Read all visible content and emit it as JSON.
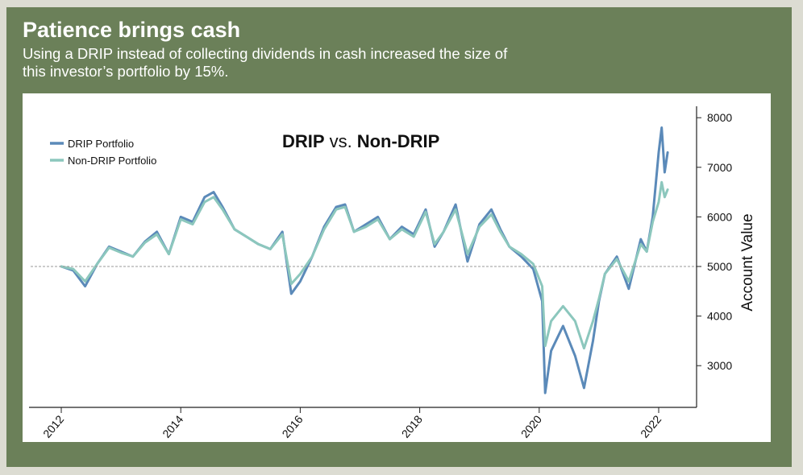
{
  "header": {
    "title": "Patience brings cash",
    "subtitle": "Using a DRIP instead of collecting dividends in cash increased the size of this investor’s portfolio by 15%."
  },
  "colors": {
    "panel_background": "#6b8059",
    "drip": "#5b8ab9",
    "non_drip": "#8cc7bd",
    "reference_line": "#9a9a9a"
  },
  "chart_data": {
    "type": "line",
    "title_strong_1": "DRIP",
    "title_connector": "vs.",
    "title_strong_2": "Non-DRIP",
    "xlabel": "",
    "ylabel": "Account Value",
    "xlim": [
      2011.6,
      2022.6
    ],
    "ylim": [
      2200,
      8200
    ],
    "x_ticks": [
      2012,
      2014,
      2016,
      2018,
      2020,
      2022
    ],
    "y_ticks": [
      3000,
      4000,
      5000,
      6000,
      7000,
      8000
    ],
    "reference_line": 5000,
    "grid": false,
    "legend_position": "top-left",
    "series": [
      {
        "name": "DRIP Portfolio",
        "color": "#5b8ab9",
        "points": [
          [
            2012.0,
            5000
          ],
          [
            2012.2,
            4920
          ],
          [
            2012.4,
            4600
          ],
          [
            2012.6,
            5050
          ],
          [
            2012.8,
            5400
          ],
          [
            2013.0,
            5300
          ],
          [
            2013.2,
            5200
          ],
          [
            2013.4,
            5500
          ],
          [
            2013.6,
            5700
          ],
          [
            2013.8,
            5250
          ],
          [
            2014.0,
            6000
          ],
          [
            2014.2,
            5900
          ],
          [
            2014.4,
            6400
          ],
          [
            2014.55,
            6500
          ],
          [
            2014.7,
            6200
          ],
          [
            2014.9,
            5750
          ],
          [
            2015.1,
            5600
          ],
          [
            2015.3,
            5450
          ],
          [
            2015.5,
            5350
          ],
          [
            2015.7,
            5700
          ],
          [
            2015.85,
            4450
          ],
          [
            2016.0,
            4700
          ],
          [
            2016.2,
            5200
          ],
          [
            2016.4,
            5800
          ],
          [
            2016.6,
            6200
          ],
          [
            2016.75,
            6250
          ],
          [
            2016.9,
            5700
          ],
          [
            2017.1,
            5850
          ],
          [
            2017.3,
            6000
          ],
          [
            2017.5,
            5550
          ],
          [
            2017.7,
            5800
          ],
          [
            2017.9,
            5650
          ],
          [
            2018.1,
            6150
          ],
          [
            2018.25,
            5400
          ],
          [
            2018.4,
            5700
          ],
          [
            2018.6,
            6250
          ],
          [
            2018.8,
            5100
          ],
          [
            2019.0,
            5850
          ],
          [
            2019.2,
            6150
          ],
          [
            2019.35,
            5750
          ],
          [
            2019.5,
            5400
          ],
          [
            2019.7,
            5200
          ],
          [
            2019.9,
            4950
          ],
          [
            2020.05,
            4300
          ],
          [
            2020.1,
            2450
          ],
          [
            2020.2,
            3300
          ],
          [
            2020.4,
            3800
          ],
          [
            2020.6,
            3200
          ],
          [
            2020.75,
            2550
          ],
          [
            2020.9,
            3500
          ],
          [
            2021.0,
            4300
          ],
          [
            2021.1,
            4850
          ],
          [
            2021.3,
            5200
          ],
          [
            2021.5,
            4550
          ],
          [
            2021.7,
            5550
          ],
          [
            2021.8,
            5300
          ],
          [
            2021.9,
            6000
          ],
          [
            2022.0,
            7300
          ],
          [
            2022.05,
            7800
          ],
          [
            2022.1,
            6900
          ],
          [
            2022.15,
            7300
          ]
        ]
      },
      {
        "name": "Non-DRIP Portfolio",
        "color": "#8cc7bd",
        "points": [
          [
            2012.0,
            5000
          ],
          [
            2012.2,
            4950
          ],
          [
            2012.4,
            4700
          ],
          [
            2012.6,
            5050
          ],
          [
            2012.8,
            5380
          ],
          [
            2013.0,
            5280
          ],
          [
            2013.2,
            5200
          ],
          [
            2013.4,
            5480
          ],
          [
            2013.6,
            5650
          ],
          [
            2013.8,
            5250
          ],
          [
            2014.0,
            5950
          ],
          [
            2014.2,
            5850
          ],
          [
            2014.4,
            6300
          ],
          [
            2014.55,
            6400
          ],
          [
            2014.7,
            6150
          ],
          [
            2014.9,
            5750
          ],
          [
            2015.1,
            5600
          ],
          [
            2015.3,
            5450
          ],
          [
            2015.5,
            5350
          ],
          [
            2015.7,
            5650
          ],
          [
            2015.85,
            4650
          ],
          [
            2016.0,
            4850
          ],
          [
            2016.2,
            5200
          ],
          [
            2016.4,
            5750
          ],
          [
            2016.6,
            6150
          ],
          [
            2016.75,
            6200
          ],
          [
            2016.9,
            5700
          ],
          [
            2017.1,
            5800
          ],
          [
            2017.3,
            5950
          ],
          [
            2017.5,
            5550
          ],
          [
            2017.7,
            5750
          ],
          [
            2017.9,
            5600
          ],
          [
            2018.1,
            6100
          ],
          [
            2018.25,
            5450
          ],
          [
            2018.4,
            5700
          ],
          [
            2018.6,
            6150
          ],
          [
            2018.8,
            5250
          ],
          [
            2019.0,
            5800
          ],
          [
            2019.2,
            6050
          ],
          [
            2019.35,
            5700
          ],
          [
            2019.5,
            5400
          ],
          [
            2019.7,
            5250
          ],
          [
            2019.9,
            5050
          ],
          [
            2020.05,
            4600
          ],
          [
            2020.1,
            3400
          ],
          [
            2020.2,
            3900
          ],
          [
            2020.4,
            4200
          ],
          [
            2020.6,
            3900
          ],
          [
            2020.75,
            3350
          ],
          [
            2020.9,
            3900
          ],
          [
            2021.0,
            4350
          ],
          [
            2021.1,
            4850
          ],
          [
            2021.3,
            5150
          ],
          [
            2021.5,
            4700
          ],
          [
            2021.7,
            5450
          ],
          [
            2021.8,
            5300
          ],
          [
            2021.9,
            5900
          ],
          [
            2022.0,
            6300
          ],
          [
            2022.05,
            6700
          ],
          [
            2022.1,
            6400
          ],
          [
            2022.15,
            6550
          ]
        ]
      }
    ]
  }
}
